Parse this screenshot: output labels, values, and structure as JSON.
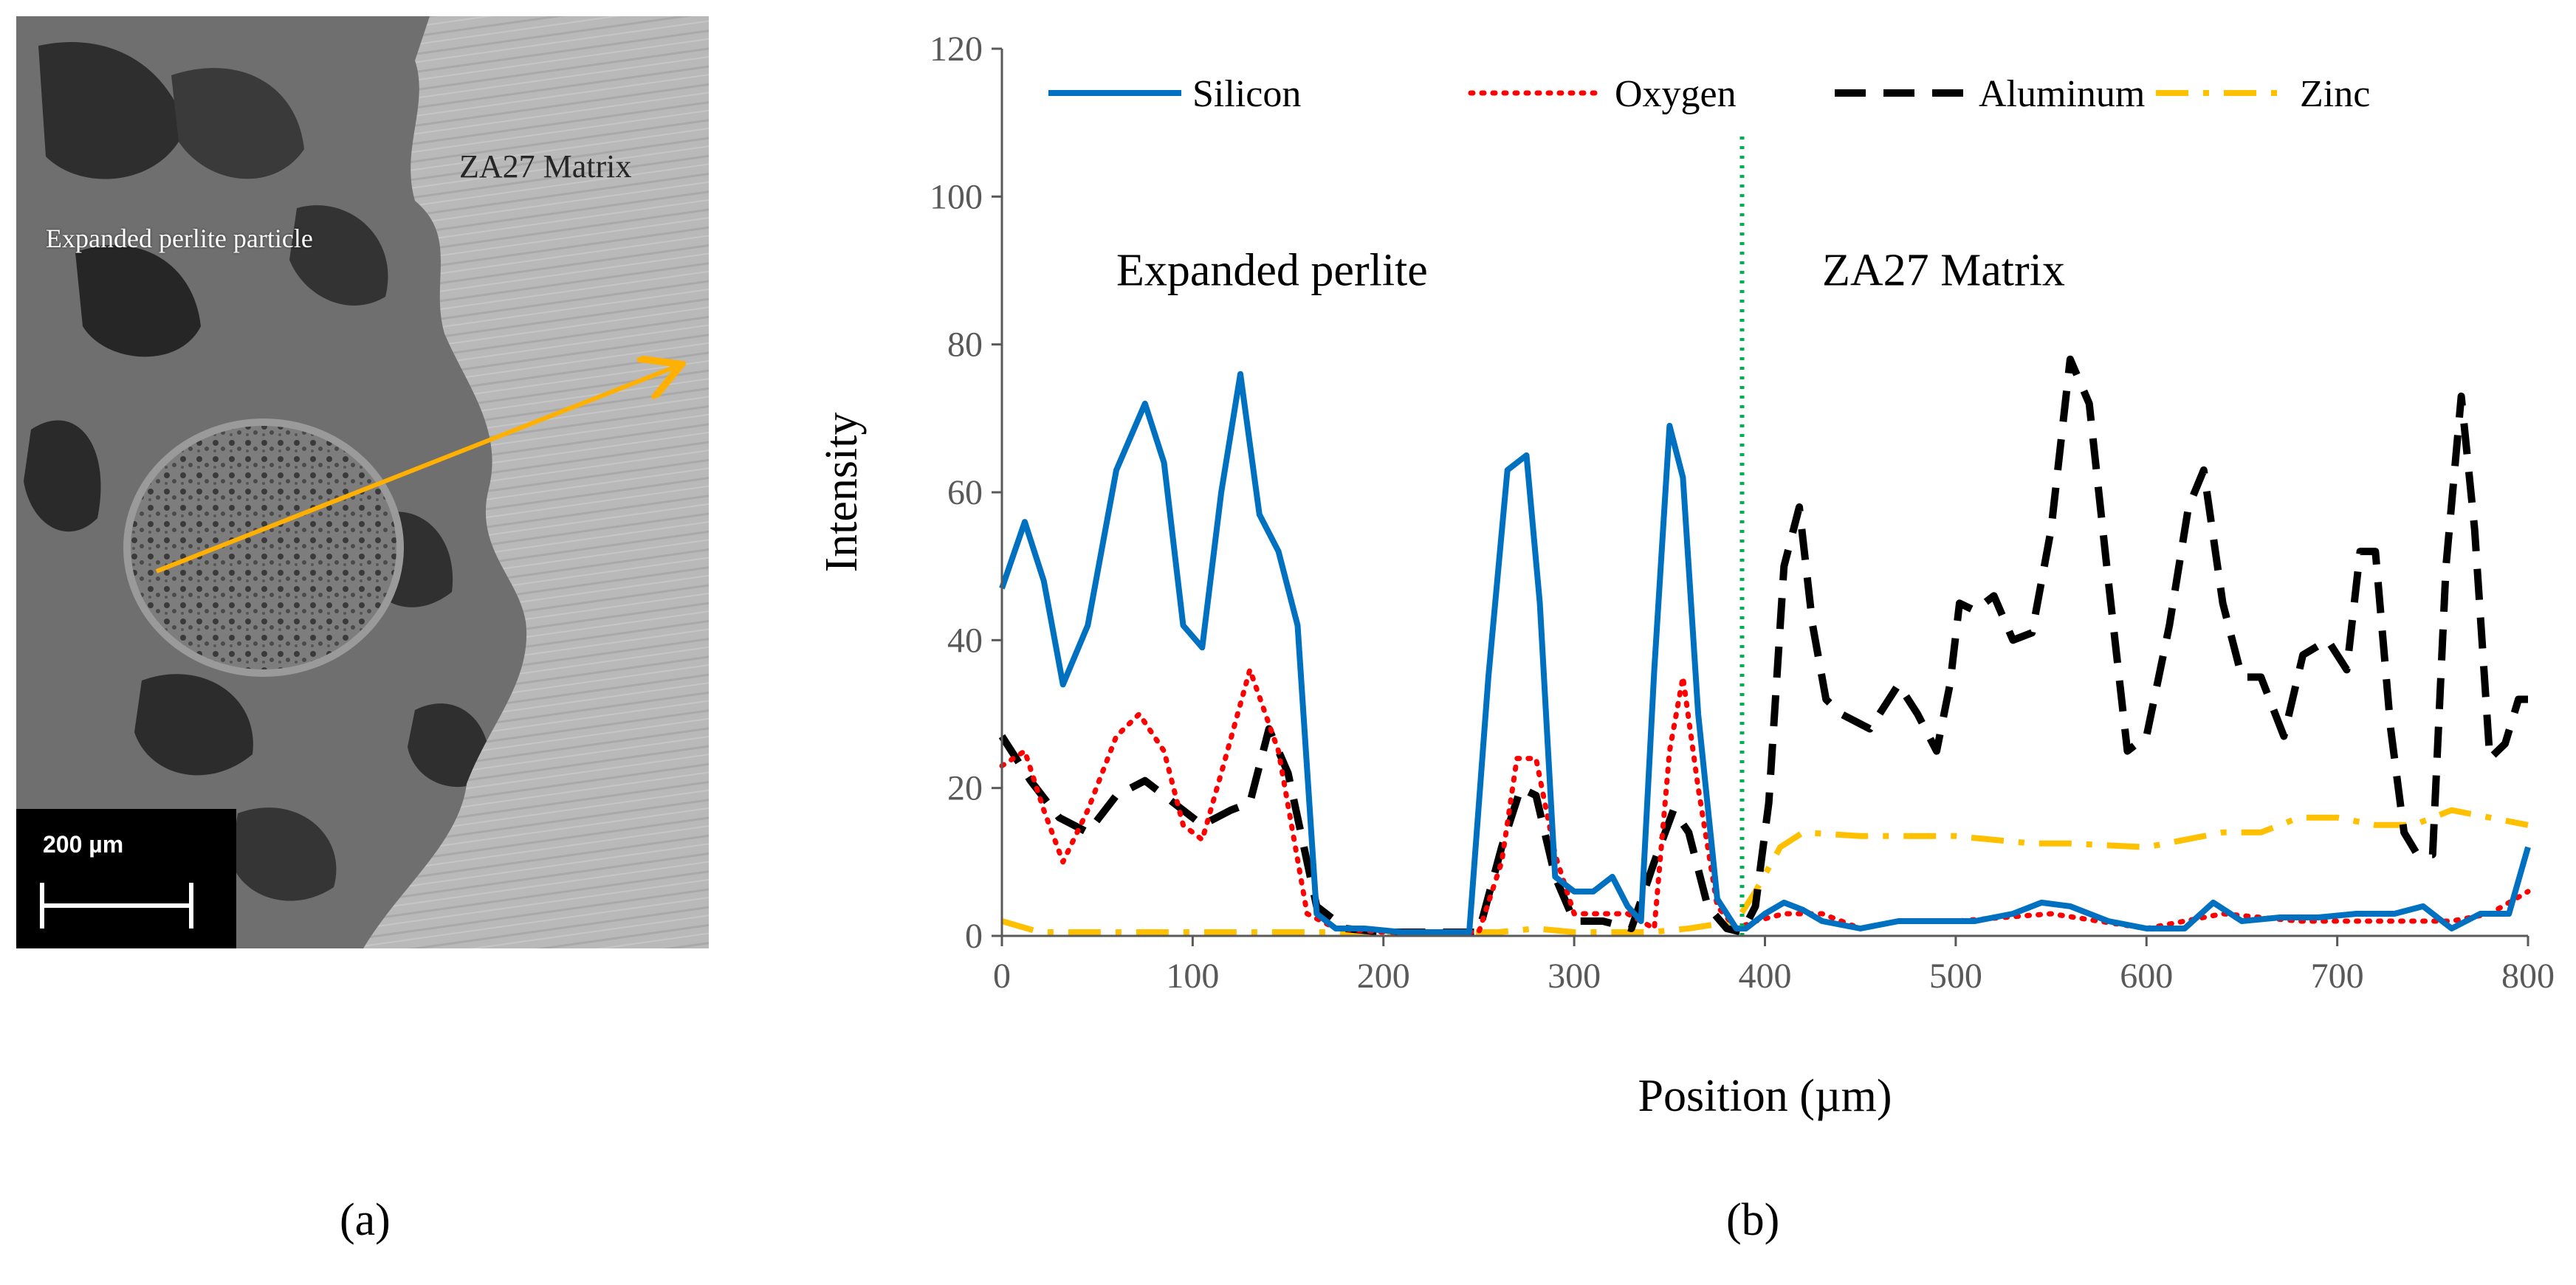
{
  "panel_a": {
    "caption": "(a)",
    "particle_label": "Expanded perlite particle",
    "matrix_label": "ZA27 Matrix",
    "scale_bar_label": "200 µm",
    "arrow_color": "#FFB000"
  },
  "panel_b": {
    "caption": "(b)"
  },
  "chart_data": {
    "type": "line",
    "title": "",
    "xlabel": "Position (µm)",
    "ylabel": "Intensity",
    "xlim": [
      0,
      800
    ],
    "ylim": [
      0,
      120
    ],
    "xticks": [
      0,
      100,
      200,
      300,
      400,
      500,
      600,
      700,
      800
    ],
    "yticks": [
      0,
      20,
      40,
      60,
      80,
      100,
      120
    ],
    "grid": false,
    "legend_position": "top",
    "boundary_x": 388,
    "boundary_color": "#00B050",
    "annotations": [
      {
        "text": "Expanded perlite",
        "x": 60,
        "y": 90
      },
      {
        "text": "ZA27 Matrix",
        "x": 430,
        "y": 90
      }
    ],
    "series": [
      {
        "name": "Silicon",
        "color": "#0070C0",
        "style": "solid",
        "x": [
          0,
          12,
          22,
          32,
          45,
          60,
          75,
          85,
          95,
          105,
          115,
          125,
          135,
          145,
          155,
          165,
          175,
          190,
          210,
          230,
          245,
          255,
          265,
          275,
          282,
          290,
          300,
          310,
          320,
          328,
          335,
          342,
          350,
          357,
          365,
          375,
          385,
          390,
          400,
          410,
          420,
          430,
          440,
          450,
          470,
          490,
          510,
          530,
          545,
          560,
          580,
          600,
          620,
          635,
          650,
          670,
          690,
          710,
          730,
          745,
          760,
          775,
          790,
          800
        ],
        "y": [
          47,
          56,
          48,
          34,
          42,
          63,
          72,
          64,
          42,
          39,
          60,
          76,
          57,
          52,
          42,
          3,
          1,
          1,
          0.5,
          0.5,
          0.5,
          35,
          63,
          65,
          45,
          8,
          6,
          6,
          8,
          4,
          2,
          36,
          69,
          62,
          30,
          5,
          1,
          1,
          3,
          4.5,
          3.5,
          2,
          1.5,
          1,
          2,
          2,
          2,
          3,
          4.5,
          4,
          2,
          1,
          1,
          4.5,
          2,
          2.5,
          2.5,
          3,
          3,
          4,
          1,
          3,
          3,
          12
        ]
      },
      {
        "name": "Oxygen",
        "color": "#FF0000",
        "style": "dotted",
        "x": [
          0,
          12,
          22,
          32,
          45,
          60,
          72,
          85,
          95,
          105,
          115,
          130,
          145,
          160,
          175,
          200,
          230,
          250,
          262,
          270,
          280,
          290,
          300,
          315,
          328,
          342,
          350,
          357,
          365,
          375,
          385,
          395,
          410,
          430,
          450,
          470,
          500,
          550,
          600,
          640,
          680,
          720,
          760,
          780,
          800
        ],
        "y": [
          23,
          25,
          17,
          10,
          17,
          27,
          30,
          25,
          15,
          13,
          22,
          36,
          25,
          3,
          1,
          0.5,
          0.5,
          0.5,
          10,
          24,
          24,
          11,
          3,
          3,
          3,
          1,
          25,
          35,
          20,
          4,
          1,
          2,
          3,
          3,
          1,
          2,
          2,
          3,
          1,
          3,
          2,
          2,
          2,
          3,
          6
        ]
      },
      {
        "name": "Aluminum",
        "color": "#000000",
        "style": "dashed",
        "x": [
          0,
          15,
          30,
          45,
          60,
          75,
          90,
          105,
          120,
          130,
          140,
          150,
          165,
          180,
          200,
          230,
          250,
          262,
          272,
          280,
          290,
          300,
          315,
          330,
          342,
          352,
          360,
          370,
          380,
          388,
          395,
          402,
          410,
          418,
          425,
          432,
          440,
          455,
          470,
          480,
          490,
          497,
          502,
          510,
          520,
          530,
          540,
          550,
          560,
          570,
          580,
          590,
          600,
          612,
          622,
          630,
          640,
          650,
          660,
          672,
          682,
          695,
          705,
          712,
          720,
          728,
          735,
          742,
          750,
          757,
          765,
          772,
          780,
          788,
          795,
          800
        ],
        "y": [
          27,
          21,
          16,
          14,
          19,
          21,
          18,
          15,
          17,
          18,
          28,
          22,
          4,
          1,
          0.5,
          0.5,
          0.5,
          12,
          20,
          19,
          8,
          2,
          2,
          1,
          10,
          17,
          14,
          4,
          1,
          0.5,
          4,
          18,
          50,
          58,
          42,
          32,
          30,
          28,
          34,
          30,
          25,
          34,
          45,
          44,
          46,
          40,
          41,
          55,
          78,
          72,
          48,
          25,
          27,
          42,
          58,
          63,
          45,
          35,
          35,
          27,
          38,
          40,
          36,
          52,
          52,
          28,
          14,
          11,
          11,
          50,
          73,
          55,
          24,
          26,
          32,
          32
        ]
      },
      {
        "name": "Zinc",
        "color": "#FFC000",
        "style": "dashdot",
        "x": [
          0,
          20,
          40,
          60,
          100,
          150,
          200,
          260,
          280,
          300,
          340,
          360,
          385,
          395,
          408,
          420,
          450,
          500,
          540,
          560,
          600,
          640,
          660,
          680,
          700,
          720,
          740,
          760,
          780,
          800
        ],
        "y": [
          2,
          0.5,
          0.5,
          0.5,
          0.5,
          0.5,
          0.5,
          0.5,
          1,
          0.5,
          0.5,
          1,
          2,
          6,
          12,
          14,
          13.5,
          13.5,
          12.5,
          12.5,
          12,
          14,
          14,
          16,
          16,
          15,
          15,
          17,
          16,
          15
        ]
      }
    ]
  }
}
